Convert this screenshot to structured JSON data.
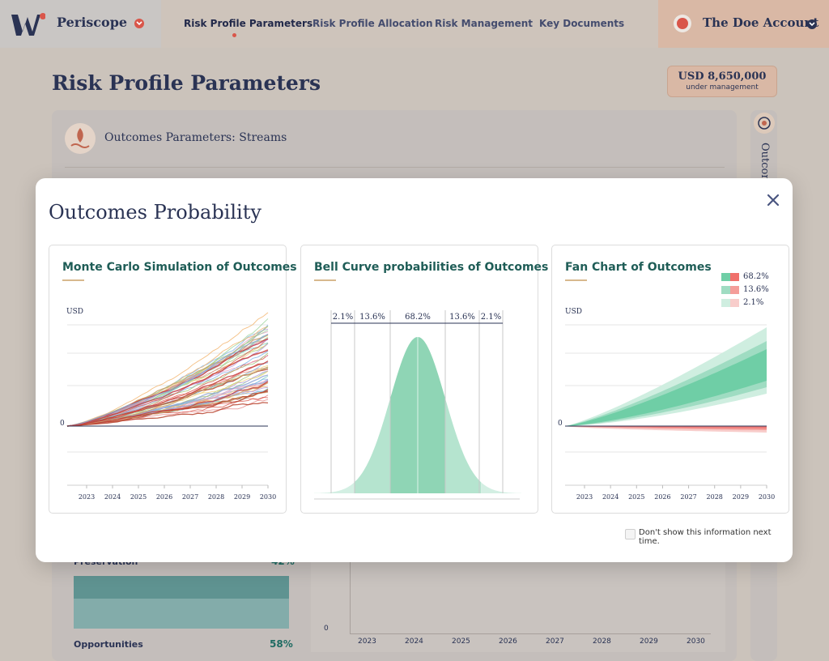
{
  "app": {
    "name": "Periscope"
  },
  "nav": {
    "items": [
      "Risk Profile Parameters",
      "Risk Profile Allocation",
      "Risk Management",
      "Key Documents"
    ],
    "active": 0
  },
  "account": {
    "name": "The Doe Account"
  },
  "page": {
    "title": "Risk Profile Parameters",
    "aum_value": "USD 8,650,000",
    "aum_label": "under management"
  },
  "card": {
    "title": "Outcomes Parameters: Streams",
    "side_tab": "Outcom"
  },
  "background_allocation": {
    "preservation_label": "Preservation",
    "preservation_pct": "42%",
    "opportunities_label": "Opportunities",
    "opportunities_pct": "58%"
  },
  "background_chart": {
    "zero": "0",
    "years": [
      "2023",
      "2024",
      "2025",
      "2026",
      "2027",
      "2028",
      "2029",
      "2030"
    ]
  },
  "modal": {
    "title": "Outcomes Probability",
    "footer_checkbox_label": "Don't show this information next time.",
    "checkbox_checked": false
  },
  "colors": {
    "navy": "#2a3354",
    "accent_red": "#d9564a",
    "teal_title": "#1f5d57",
    "green_band": "#88d3b0",
    "red_band": "#ef7b78"
  },
  "chart_data": [
    {
      "type": "line",
      "title": "Monte Carlo Simulation of Outcomes",
      "ylabel": "USD",
      "y_tick_labels": [
        "0"
      ],
      "x": [
        "2023",
        "2024",
        "2025",
        "2026",
        "2027",
        "2028",
        "2029",
        "2030"
      ],
      "series_description_visible": false
    },
    {
      "type": "area",
      "title": "Bell Curve probabilities of Outcomes",
      "band_labels": [
        "2.1%",
        "13.6%",
        "68.2%",
        "13.6%",
        "2.1%"
      ]
    },
    {
      "type": "area",
      "title": "Fan Chart of Outcomes",
      "ylabel": "USD",
      "y_tick_labels": [
        "0"
      ],
      "x": [
        "2023",
        "2024",
        "2025",
        "2026",
        "2027",
        "2028",
        "2029",
        "2030"
      ],
      "legend": [
        "68.2%",
        "13.6%",
        "2.1%"
      ],
      "legend_position": "top-right"
    }
  ]
}
